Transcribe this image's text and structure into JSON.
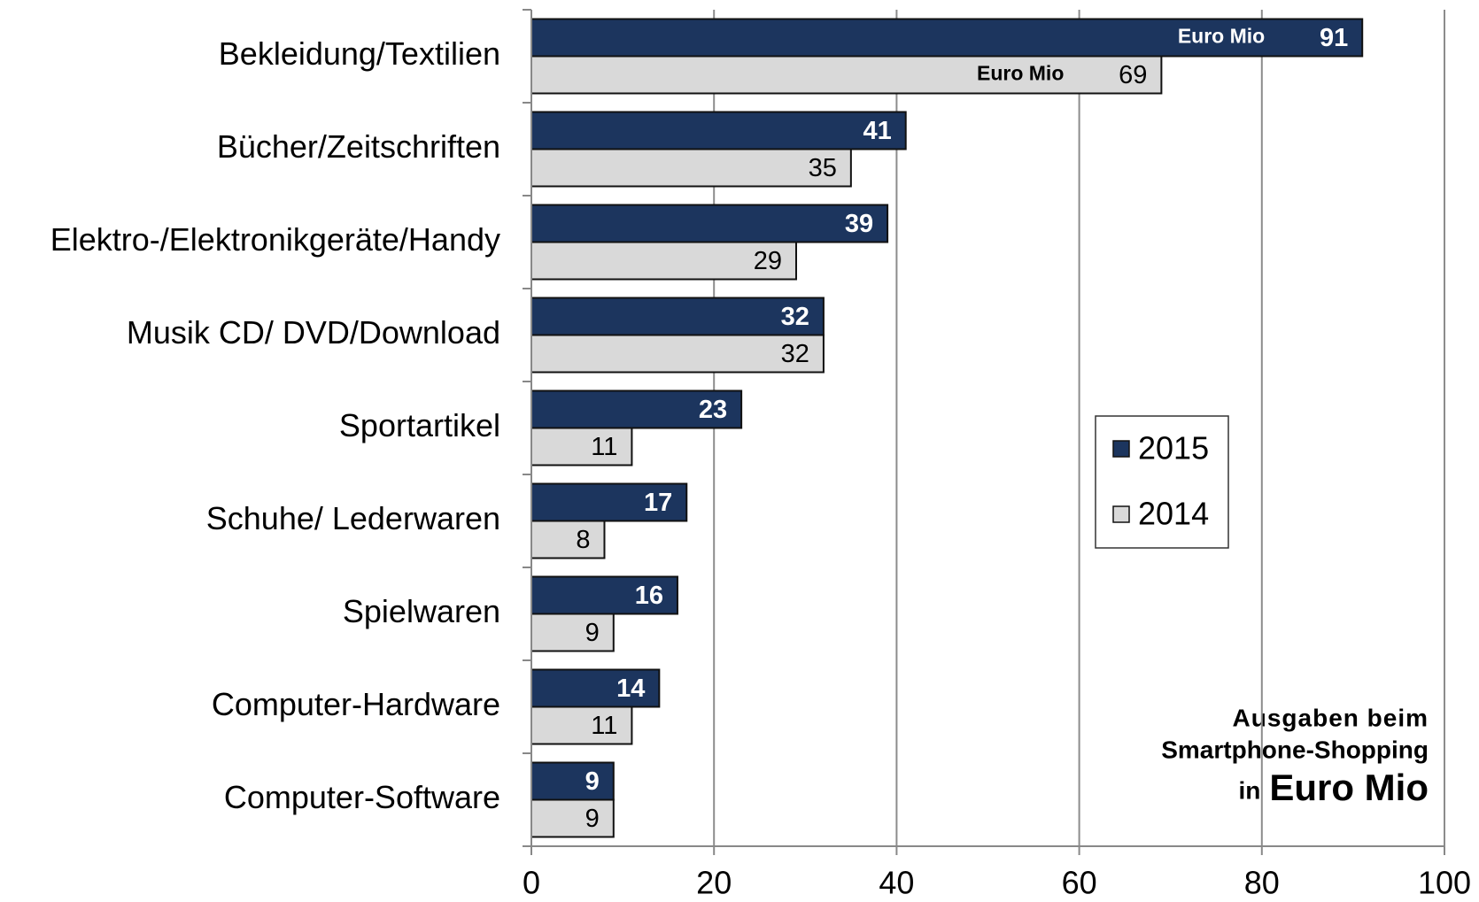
{
  "chart_data": {
    "type": "hbar",
    "categories": [
      "Bekleidung/Textilien",
      "Bücher/Zeitschriften",
      "Elektro-/Elektronikgeräte/Handy",
      "Musik CD/ DVD/Download",
      "Sportartikel",
      "Schuhe/ Lederwaren",
      "Spielwaren",
      "Computer-Hardware",
      "Computer-Software"
    ],
    "series": [
      {
        "name": "2015",
        "color": "#1c355e",
        "values": [
          91,
          41,
          39,
          32,
          23,
          17,
          16,
          14,
          9
        ]
      },
      {
        "name": "2014",
        "color": "#d9d9d9",
        "values": [
          69,
          35,
          29,
          32,
          11,
          8,
          9,
          11,
          9
        ]
      }
    ],
    "xlim": [
      0,
      100
    ],
    "xticks": [
      0,
      20,
      40,
      60,
      80,
      100
    ],
    "grid": true,
    "legend": "right",
    "bar_annotations": [
      "Euro Mio",
      "Euro Mio"
    ],
    "caption": [
      "Ausgaben beim",
      "Smartphone-Shopping",
      "in",
      "Euro Mio"
    ]
  }
}
